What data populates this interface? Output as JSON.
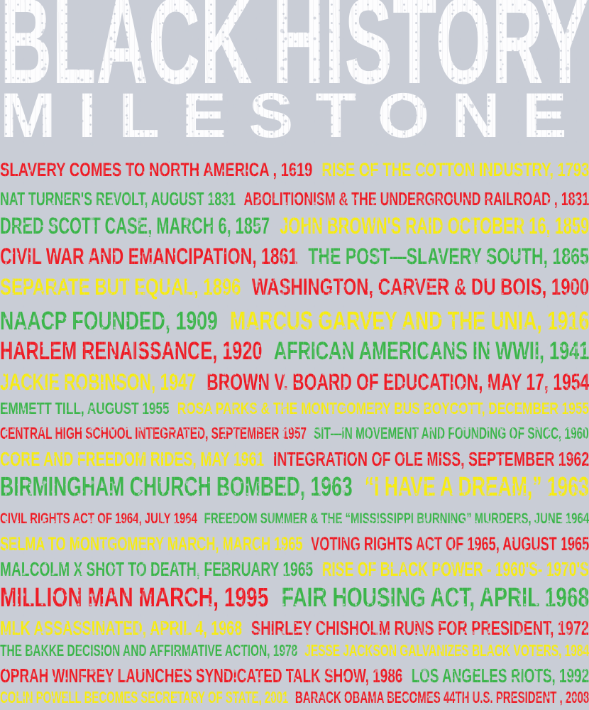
{
  "header": {
    "title": "BLACK HISTORY",
    "subtitle": "MILESTONE"
  },
  "palette": {
    "background": "#c9cdd6",
    "title": "#fdfdfe",
    "red": "#ee1c25",
    "green": "#3bb54a",
    "yellow": "#f7ec13"
  },
  "milestones": [
    {
      "segments": [
        {
          "text": "SLAVERY COMES TO NORTH AMERICA , 1619",
          "color": "red"
        },
        {
          "text": "RISE OF THE COTTON INDUSTRY, 1793",
          "color": "yellow"
        }
      ]
    },
    {
      "segments": [
        {
          "text": "NAT TURNER'S REVOLT, AUGUST 1831",
          "color": "green"
        },
        {
          "text": "ABOLITIONISM & THE UNDERGROUND RAILROAD , 1831",
          "color": "red"
        }
      ]
    },
    {
      "segments": [
        {
          "text": "DRED SCOTT CASE, MARCH 6, 1857",
          "color": "green"
        },
        {
          "text": "JOHN BROWN'S RAID OCTOBER 16, 1859",
          "color": "yellow"
        }
      ]
    },
    {
      "segments": [
        {
          "text": "CIVIL WAR AND EMANCIPATION, 1861",
          "color": "red"
        },
        {
          "text": "THE POST—SLAVERY SOUTH, 1865",
          "color": "green"
        }
      ]
    },
    {
      "segments": [
        {
          "text": "SEPARATE BUT EQUAL, 1896",
          "color": "yellow"
        },
        {
          "text": "WASHINGTON, CARVER & DU BOIS, 1900",
          "color": "red"
        }
      ]
    },
    {
      "segments": [
        {
          "text": "NAACP FOUNDED, 1909",
          "color": "green"
        },
        {
          "text": "MARCUS GARVEY AND THE UNIA, 1916",
          "color": "yellow"
        }
      ]
    },
    {
      "segments": [
        {
          "text": "HARLEM RENAISSANCE, 1920",
          "color": "red"
        },
        {
          "text": "AFRICAN AMERICANS IN WWII, 1941",
          "color": "green"
        }
      ]
    },
    {
      "segments": [
        {
          "text": "JACKIE ROBINSON, 1947",
          "color": "yellow"
        },
        {
          "text": "BROWN V. BOARD OF EDUCATION, MAY 17, 1954",
          "color": "red"
        }
      ]
    },
    {
      "segments": [
        {
          "text": "EMMETT TILL, AUGUST 1955",
          "color": "green"
        },
        {
          "text": "ROSA PARKS & THE MONTGOMERY BUS BOYCOTT, DECEMBER 1955",
          "color": "yellow"
        }
      ]
    },
    {
      "segments": [
        {
          "text": "CENTRAL HIGH SCHOOL INTEGRATED, SEPTEMBER 1957",
          "color": "red"
        },
        {
          "text": "SIT—IN MOVEMENT AND FOUNDING OF SNCC, 1960",
          "color": "green"
        }
      ]
    },
    {
      "segments": [
        {
          "text": "CORE AND FREEDOM RIDES, MAY 1961",
          "color": "yellow"
        },
        {
          "text": "INTEGRATION OF OLE MISS, SEPTEMBER 1962",
          "color": "red"
        }
      ]
    },
    {
      "segments": [
        {
          "text": "BIRMINGHAM CHURCH BOMBED, 1963",
          "color": "green"
        },
        {
          "text": "“I HAVE A DREAM,” 1963",
          "color": "yellow"
        }
      ]
    },
    {
      "segments": [
        {
          "text": "CIVIL RIGHTS ACT OF 1964, JULY 1964",
          "color": "red"
        },
        {
          "text": "FREEDOM SUMMER & THE “MISSISSIPPI BURNING” MURDERS, JUNE 1964",
          "color": "green"
        }
      ]
    },
    {
      "segments": [
        {
          "text": "SELMA TO MONTGOMERY MARCH, MARCH 1965",
          "color": "yellow"
        },
        {
          "text": "VOTING RIGHTS ACT OF 1965, AUGUST 1965",
          "color": "red"
        }
      ]
    },
    {
      "segments": [
        {
          "text": "MALCOLM X SHOT TO DEATH, FEBRUARY 1965",
          "color": "green"
        },
        {
          "text": "RISE OF BLACK POWER - 1960'S- 1970'S",
          "color": "yellow"
        }
      ]
    },
    {
      "segments": [
        {
          "text": "MILLION MAN MARCH, 1995",
          "color": "red"
        },
        {
          "text": "FAIR HOUSING ACT, APRIL 1968",
          "color": "green"
        }
      ]
    },
    {
      "segments": [
        {
          "text": "MLK ASSASSINATED, APRIL 4, 1968",
          "color": "yellow"
        },
        {
          "text": "SHIRLEY CHISHOLM RUNS FOR PRESIDENT, 1972",
          "color": "red"
        }
      ]
    },
    {
      "segments": [
        {
          "text": "THE BAKKE DECISION AND AFFIRMATIVE ACTION, 1978",
          "color": "green"
        },
        {
          "text": "JESSE JACKSON GALVANIZES BLACK VOTERS, 1984",
          "color": "yellow"
        }
      ]
    },
    {
      "segments": [
        {
          "text": "OPRAH WINFREY LAUNCHES SYNDICATED TALK SHOW, 1986",
          "color": "red"
        },
        {
          "text": "LOS ANGELES RIOTS, 1992",
          "color": "green"
        }
      ]
    },
    {
      "segments": [
        {
          "text": "COLIN POWELL BECOMES SECRETARY OF STATE, 2001",
          "color": "yellow"
        },
        {
          "text": "BARACK OBAMA BECOMES 44TH U.S. PRESIDENT , 2008",
          "color": "red"
        }
      ]
    }
  ]
}
